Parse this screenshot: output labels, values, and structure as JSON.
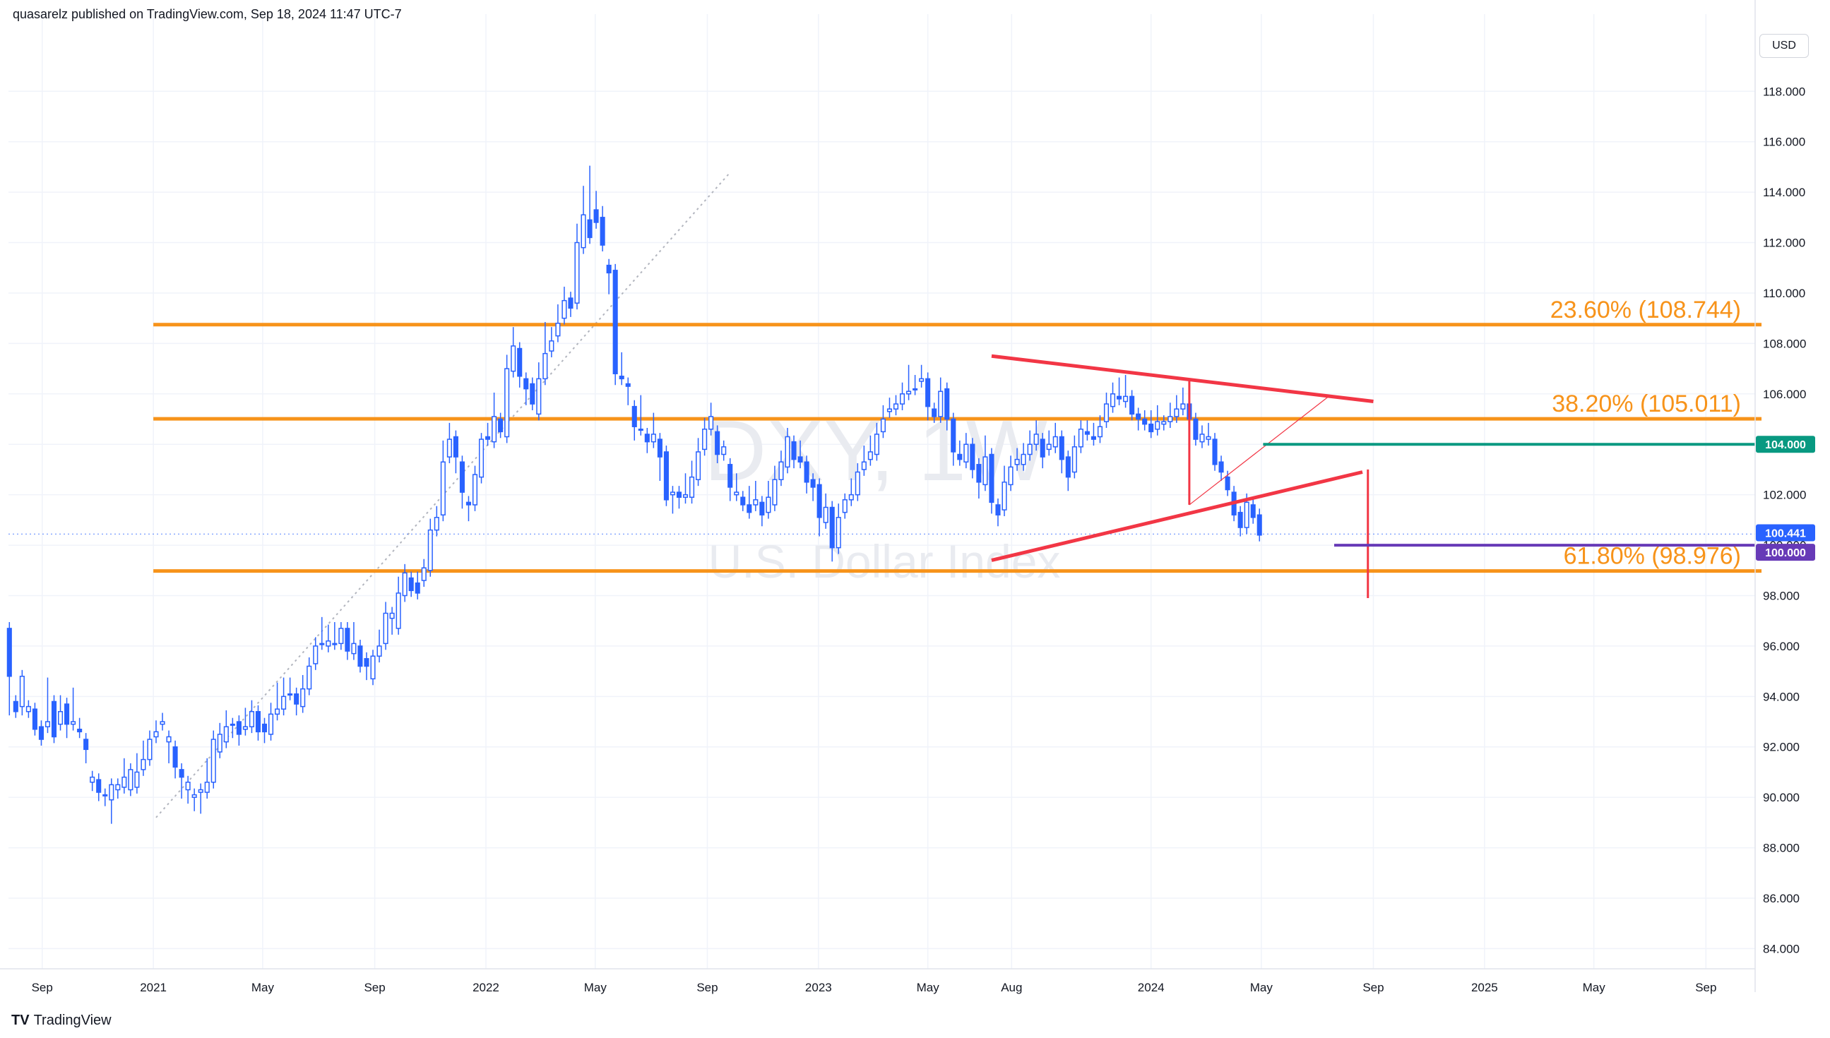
{
  "header": {
    "published": "quasarelz published on TradingView.com, Sep 18, 2024 11:47 UTC-7"
  },
  "branding": {
    "logo_text": "TradingView",
    "logo_mark": "TV"
  },
  "price_scale": {
    "currency": "USD"
  },
  "colors": {
    "up": "#2962ff",
    "down": "#2962ff",
    "fib": "#f7931a",
    "triangle": "#f23645",
    "support": "#089981",
    "level100": "#673ab7",
    "current": "#2962ff",
    "grid": "#f0f3fa"
  },
  "chart_data": {
    "type": "candlestick",
    "symbol": "DXY, 1W",
    "watermark_title": "DXY, 1W",
    "watermark_subtitle": "U.S. Dollar Index",
    "x_labels": [
      {
        "date": "2020-09-01",
        "label": "Sep"
      },
      {
        "date": "2021-01-01",
        "label": "2021"
      },
      {
        "date": "2021-05-01",
        "label": "May"
      },
      {
        "date": "2021-09-01",
        "label": "Sep"
      },
      {
        "date": "2022-01-01",
        "label": "2022"
      },
      {
        "date": "2022-05-01",
        "label": "May"
      },
      {
        "date": "2022-09-01",
        "label": "Sep"
      },
      {
        "date": "2023-01-01",
        "label": "2023"
      },
      {
        "date": "2023-05-01",
        "label": "May"
      },
      {
        "date": "2023-08-01",
        "label": "Aug"
      },
      {
        "date": "2024-01-01",
        "label": "2024"
      },
      {
        "date": "2024-05-01",
        "label": "May"
      },
      {
        "date": "2024-09-01",
        "label": "Sep"
      },
      {
        "date": "2025-01-01",
        "label": "2025"
      },
      {
        "date": "2025-05-01",
        "label": "May"
      },
      {
        "date": "2025-09-01",
        "label": "Sep"
      }
    ],
    "x_range": [
      "2020-07-26",
      "2025-10-25"
    ],
    "y_range": [
      83.2,
      120.5
    ],
    "y_ticks": [
      "84.000",
      "86.000",
      "88.000",
      "90.000",
      "92.000",
      "94.000",
      "96.000",
      "98.000",
      "100.000",
      "102.000",
      "104.000",
      "106.000",
      "108.000",
      "110.000",
      "112.000",
      "114.000",
      "116.000",
      "118.000"
    ],
    "fib_levels": [
      {
        "label": "23.60% (108.744)",
        "value": 108.744
      },
      {
        "label": "38.20% (105.011)",
        "value": 105.011
      },
      {
        "label": "61.80% (98.976)",
        "value": 98.976
      }
    ],
    "fib_start": "2021-01-01",
    "fib_end": "2025-11-01",
    "fib_trend": {
      "from": {
        "date": "2021-01-04",
        "price": 89.2
      },
      "to": {
        "date": "2022-09-26",
        "price": 114.78
      }
    },
    "triangle": {
      "upper": {
        "from": {
          "date": "2023-07-10",
          "price": 107.5
        },
        "to": {
          "date": "2024-09-01",
          "price": 105.7
        }
      },
      "lower": {
        "from": {
          "date": "2023-07-10",
          "price": 99.4
        },
        "to": {
          "date": "2024-08-20",
          "price": 102.9
        }
      },
      "height": {
        "date": "2024-02-12",
        "top": 106.5,
        "bottom": 101.6
      },
      "projection": {
        "date": "2024-08-26",
        "top": 103.0,
        "bottom": 97.9
      }
    },
    "minor_trend": {
      "from": {
        "date": "2024-02-12",
        "price": 101.6
      },
      "to": {
        "date": "2024-07-14",
        "price": 105.9
      }
    },
    "support_line": {
      "value": 104.0,
      "label": "104.000",
      "from": "2024-05-03"
    },
    "level_line": {
      "value": 100.0,
      "label": "100.000",
      "from": "2024-07-20"
    },
    "current_price": {
      "value": 100.441,
      "label": "100.441"
    },
    "candles": [
      [
        96.7,
        94.8,
        93.5
      ],
      [
        93.8,
        93.4,
        93.6
      ],
      [
        93.6,
        94.8,
        93.5
      ],
      [
        93.4,
        93.6,
        93.5
      ],
      [
        93.5,
        92.7,
        92.7
      ],
      [
        92.8,
        92.3,
        92.4
      ],
      [
        92.8,
        93.0,
        94.5
      ],
      [
        93.8,
        92.4,
        93.0
      ],
      [
        92.9,
        93.4,
        93.8
      ],
      [
        93.7,
        92.9,
        92.6
      ],
      [
        92.9,
        93.0,
        94.1
      ],
      [
        92.7,
        92.6,
        92.9
      ],
      [
        92.3,
        91.9,
        91.6
      ],
      [
        90.6,
        90.8,
        90.5
      ],
      [
        90.7,
        90.2,
        90.1
      ],
      [
        90.1,
        90.1,
        89.9
      ],
      [
        89.9,
        90.5,
        89.2
      ],
      [
        90.3,
        90.5,
        90.2
      ],
      [
        90.4,
        90.8,
        91.3
      ],
      [
        90.3,
        91.1,
        90.4
      ],
      [
        90.4,
        91.0,
        91.5
      ],
      [
        91.1,
        91.5,
        92.0
      ],
      [
        91.5,
        92.3,
        92.4
      ],
      [
        92.4,
        92.6,
        92.8
      ],
      [
        92.9,
        93.0,
        93.1
      ],
      [
        92.2,
        92.4,
        91.6
      ],
      [
        92.0,
        91.2,
        91.0
      ],
      [
        91.1,
        90.8,
        90.2
      ],
      [
        90.3,
        90.6,
        90.0
      ],
      [
        90.0,
        90.1,
        89.7
      ],
      [
        90.2,
        90.3,
        89.6
      ],
      [
        90.2,
        90.6,
        91.3
      ],
      [
        90.6,
        92.3,
        92.4
      ],
      [
        91.8,
        92.5,
        92.7
      ],
      [
        92.2,
        92.8,
        93.2
      ],
      [
        92.9,
        92.9,
        92.6
      ],
      [
        93.0,
        92.5,
        92.3
      ],
      [
        92.7,
        92.8,
        93.3
      ],
      [
        92.8,
        93.4,
        93.6
      ],
      [
        93.4,
        92.6,
        92.5
      ],
      [
        92.9,
        92.6,
        92.4
      ],
      [
        92.5,
        93.3,
        93.5
      ],
      [
        93.3,
        93.5,
        94.3
      ],
      [
        93.5,
        94.0,
        94.5
      ],
      [
        94.1,
        94.1,
        94.5
      ],
      [
        94.1,
        93.7,
        93.5
      ],
      [
        93.6,
        94.3,
        94.6
      ],
      [
        94.3,
        95.2,
        95.3
      ],
      [
        95.3,
        96.0,
        96.1
      ],
      [
        96.1,
        96.1,
        96.9
      ],
      [
        96.0,
        96.2,
        96.6
      ],
      [
        96.1,
        96.1,
        96.7
      ],
      [
        96.1,
        96.7,
        96.4
      ],
      [
        96.7,
        95.8,
        95.7
      ],
      [
        95.7,
        96.1,
        96.7
      ],
      [
        96.0,
        95.2,
        95.5
      ],
      [
        95.5,
        95.2,
        94.9
      ],
      [
        94.7,
        95.6,
        95.4
      ],
      [
        95.6,
        96.0,
        96.4
      ],
      [
        96.1,
        97.3,
        97.5
      ],
      [
        97.1,
        97.3,
        96.7
      ],
      [
        96.7,
        98.1,
        98.5
      ],
      [
        98.0,
        98.9,
        99.0
      ],
      [
        98.7,
        98.2,
        98.3
      ],
      [
        98.5,
        98.1,
        98.7
      ],
      [
        98.6,
        99.1,
        99.2
      ],
      [
        99.0,
        100.6,
        100.8
      ],
      [
        100.6,
        101.1,
        101.3
      ],
      [
        101.2,
        103.3,
        103.9
      ],
      [
        103.5,
        104.2,
        104.6
      ],
      [
        104.3,
        103.5,
        103.1
      ],
      [
        103.3,
        102.1,
        101.7
      ],
      [
        101.7,
        101.6,
        101.2
      ],
      [
        101.6,
        102.8,
        102.9
      ],
      [
        102.7,
        104.2,
        104.2
      ],
      [
        104.3,
        104.2,
        104.6
      ],
      [
        104.1,
        105.1,
        105.8
      ],
      [
        105.0,
        104.5,
        104.6
      ],
      [
        104.3,
        107.0,
        107.3
      ],
      [
        106.9,
        107.9,
        108.4
      ],
      [
        107.8,
        106.7,
        106.5
      ],
      [
        106.6,
        106.2,
        105.8
      ],
      [
        106.4,
        105.6,
        105.8
      ],
      [
        105.2,
        106.6,
        107.0
      ],
      [
        106.6,
        107.6,
        108.6
      ],
      [
        107.7,
        108.1,
        108.4
      ],
      [
        108.3,
        108.8,
        109.3
      ],
      [
        109.0,
        109.7,
        110.0
      ],
      [
        109.8,
        109.4,
        109.3
      ],
      [
        109.6,
        112.0,
        112.5
      ],
      [
        111.8,
        113.1,
        114.0
      ],
      [
        112.9,
        112.2,
        114.8
      ],
      [
        113.3,
        112.8,
        113.8
      ],
      [
        113.0,
        111.9,
        113.2
      ],
      [
        111.1,
        110.8,
        110.2
      ],
      [
        110.9,
        106.8,
        106.6
      ],
      [
        106.7,
        106.6,
        107.4
      ],
      [
        106.4,
        106.3,
        105.8
      ],
      [
        105.5,
        104.7,
        104.4
      ],
      [
        104.6,
        104.6,
        105.7
      ],
      [
        104.4,
        104.1,
        103.9
      ],
      [
        104.1,
        104.4,
        105.0
      ],
      [
        104.2,
        103.5,
        102.8
      ],
      [
        103.7,
        101.8,
        102.0
      ],
      [
        102.0,
        102.1,
        101.5
      ],
      [
        102.1,
        101.9,
        101.7
      ],
      [
        101.9,
        102.0,
        102.6
      ],
      [
        101.9,
        102.7,
        103.1
      ],
      [
        102.6,
        103.7,
        104.0
      ],
      [
        103.8,
        104.6,
        104.8
      ],
      [
        104.6,
        105.1,
        105.4
      ],
      [
        104.5,
        103.6,
        103.5
      ],
      [
        103.6,
        103.9,
        103.7
      ],
      [
        103.2,
        102.3,
        102.0
      ],
      [
        102.0,
        102.1,
        102.6
      ],
      [
        101.9,
        101.6,
        101.7
      ],
      [
        101.6,
        101.3,
        102.1
      ],
      [
        101.6,
        101.8,
        102.3
      ],
      [
        101.7,
        101.2,
        101.0
      ],
      [
        101.3,
        101.9,
        102.3
      ],
      [
        101.6,
        102.6,
        102.9
      ],
      [
        102.6,
        103.3,
        103.5
      ],
      [
        103.1,
        104.3,
        104.4
      ],
      [
        104.1,
        103.4,
        103.3
      ],
      [
        103.5,
        103.3,
        103.9
      ],
      [
        103.3,
        102.5,
        102.3
      ],
      [
        102.6,
        102.3,
        102.0
      ],
      [
        102.4,
        101.1,
        100.6
      ],
      [
        100.9,
        101.5,
        101.8
      ],
      [
        101.5,
        99.9,
        99.6
      ],
      [
        99.9,
        101.1,
        101.4
      ],
      [
        101.3,
        101.8,
        101.6
      ],
      [
        101.8,
        102.0,
        102.4
      ],
      [
        102.0,
        102.9,
        103.0
      ],
      [
        103.0,
        103.3,
        103.7
      ],
      [
        103.4,
        103.7,
        104.1
      ],
      [
        103.6,
        104.4,
        104.6
      ],
      [
        104.5,
        105.0,
        105.3
      ],
      [
        105.3,
        105.4,
        105.6
      ],
      [
        105.4,
        105.6,
        105.7
      ],
      [
        105.6,
        106.0,
        106.2
      ],
      [
        106.0,
        106.1,
        106.9
      ],
      [
        106.2,
        106.2,
        106.5
      ],
      [
        106.5,
        106.6,
        106.9
      ],
      [
        106.6,
        105.5,
        105.2
      ],
      [
        105.4,
        105.1,
        105.3
      ],
      [
        105.1,
        106.1,
        106.4
      ],
      [
        106.2,
        105.0,
        104.8
      ],
      [
        105.0,
        103.7,
        103.4
      ],
      [
        103.6,
        103.4,
        103.9
      ],
      [
        103.3,
        104.0,
        104.2
      ],
      [
        104.0,
        103.0,
        102.9
      ],
      [
        103.2,
        102.5,
        102.1
      ],
      [
        102.4,
        103.5,
        104.1
      ],
      [
        103.6,
        101.7,
        101.5
      ],
      [
        101.6,
        101.2,
        101.0
      ],
      [
        101.4,
        102.5,
        102.9
      ],
      [
        102.4,
        103.1,
        103.3
      ],
      [
        103.2,
        103.4,
        103.6
      ],
      [
        103.2,
        103.6,
        103.8
      ],
      [
        103.6,
        104.0,
        104.3
      ],
      [
        104.0,
        104.4,
        104.7
      ],
      [
        104.2,
        103.5,
        103.3
      ],
      [
        103.8,
        104.0,
        104.3
      ],
      [
        103.9,
        104.3,
        104.6
      ],
      [
        104.3,
        103.4,
        103.1
      ],
      [
        103.5,
        102.7,
        102.4
      ],
      [
        102.9,
        103.9,
        104.1
      ],
      [
        103.9,
        104.6,
        104.7
      ],
      [
        104.5,
        104.4,
        104.7
      ],
      [
        104.3,
        104.2,
        104.6
      ],
      [
        104.3,
        104.7,
        104.9
      ],
      [
        104.9,
        105.6,
        105.8
      ],
      [
        105.5,
        106.0,
        106.2
      ],
      [
        105.9,
        105.8,
        106.4
      ],
      [
        105.7,
        105.9,
        106.5
      ],
      [
        105.9,
        105.2,
        105.3
      ],
      [
        105.2,
        105.0,
        104.8
      ],
      [
        105.0,
        104.8,
        105.1
      ],
      [
        104.8,
        104.5,
        105.1
      ],
      [
        104.6,
        104.9,
        105.3
      ],
      [
        104.8,
        104.9,
        104.8
      ],
      [
        104.9,
        105.1,
        105.4
      ],
      [
        105.1,
        105.4,
        105.7
      ],
      [
        105.4,
        105.6,
        106.0
      ],
      [
        105.6,
        105.0,
        105.9
      ],
      [
        105.0,
        104.2,
        104.3
      ],
      [
        104.1,
        104.4,
        104.5
      ],
      [
        104.2,
        104.3,
        104.6
      ],
      [
        104.2,
        103.2,
        103.4
      ],
      [
        103.3,
        102.9,
        102.8
      ],
      [
        102.7,
        102.2,
        102.4
      ],
      [
        102.1,
        101.2,
        101.2
      ],
      [
        101.3,
        100.7,
        100.6
      ],
      [
        100.7,
        101.7,
        101.8
      ],
      [
        101.6,
        101.1,
        101.3
      ],
      [
        101.2,
        100.4,
        100.6
      ]
    ]
  }
}
